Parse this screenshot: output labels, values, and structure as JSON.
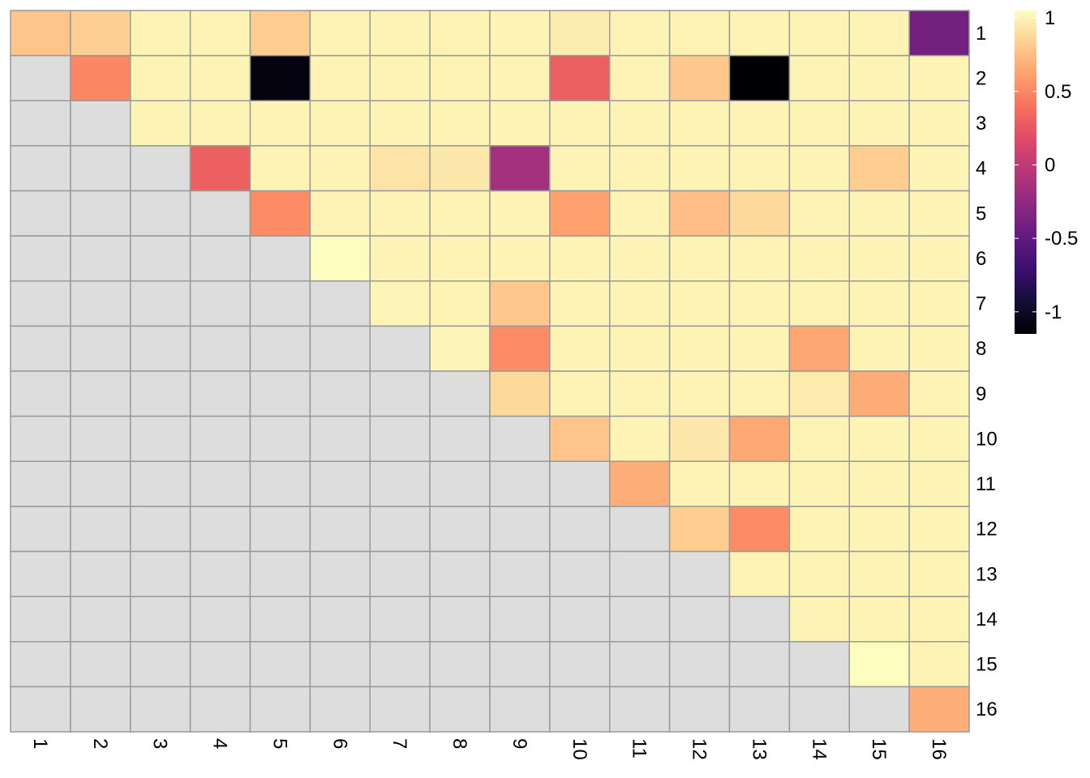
{
  "chart_data": {
    "type": "heatmap",
    "colormap": "magma",
    "na_color": "#DDDDDD",
    "border_color": "#999999",
    "color_range": [
      -1.15,
      1.05
    ],
    "legend": {
      "position": "right",
      "ticks": [
        "1",
        "0.5",
        "0",
        "-0.5",
        "-1"
      ],
      "tick_values": [
        1,
        0.5,
        0,
        -0.5,
        -1
      ]
    },
    "row_labels": [
      "1",
      "2",
      "3",
      "4",
      "5",
      "6",
      "7",
      "8",
      "9",
      "10",
      "11",
      "12",
      "13",
      "14",
      "15",
      "16"
    ],
    "col_labels": [
      "1",
      "2",
      "3",
      "4",
      "5",
      "6",
      "7",
      "8",
      "9",
      "10",
      "11",
      "12",
      "13",
      "14",
      "15",
      "16"
    ],
    "values": [
      [
        0.78,
        0.83,
        1.0,
        1.0,
        0.82,
        1.0,
        1.0,
        1.0,
        1.0,
        0.97,
        1.0,
        1.0,
        1.0,
        1.0,
        1.0,
        -0.4
      ],
      [
        null,
        0.5,
        1.0,
        1.0,
        -1.1,
        1.0,
        1.0,
        1.0,
        1.0,
        0.3,
        1.0,
        0.8,
        -1.15,
        1.0,
        1.0,
        1.0
      ],
      [
        null,
        null,
        1.0,
        1.0,
        1.0,
        1.0,
        1.0,
        1.0,
        1.0,
        1.0,
        1.0,
        1.0,
        1.0,
        1.0,
        1.0,
        1.0
      ],
      [
        null,
        null,
        null,
        0.3,
        1.0,
        1.0,
        0.93,
        0.95,
        -0.15,
        1.0,
        1.0,
        1.0,
        1.0,
        1.0,
        0.82,
        1.0
      ],
      [
        null,
        null,
        null,
        null,
        0.52,
        1.0,
        1.0,
        1.0,
        1.0,
        0.62,
        1.0,
        0.75,
        0.88,
        1.0,
        1.0,
        1.0
      ],
      [
        null,
        null,
        null,
        null,
        null,
        1.05,
        1.0,
        1.0,
        1.0,
        1.0,
        1.0,
        1.0,
        1.0,
        1.0,
        1.0,
        1.0
      ],
      [
        null,
        null,
        null,
        null,
        null,
        null,
        1.01,
        1.0,
        0.8,
        1.0,
        1.0,
        1.0,
        1.0,
        1.0,
        1.0,
        1.0
      ],
      [
        null,
        null,
        null,
        null,
        null,
        null,
        null,
        1.01,
        0.52,
        1.0,
        1.0,
        1.0,
        1.0,
        0.64,
        1.0,
        1.0
      ],
      [
        null,
        null,
        null,
        null,
        null,
        null,
        null,
        null,
        0.88,
        1.0,
        1.0,
        1.0,
        1.0,
        0.96,
        0.67,
        1.0
      ],
      [
        null,
        null,
        null,
        null,
        null,
        null,
        null,
        null,
        null,
        0.78,
        1.0,
        0.95,
        0.65,
        1.0,
        1.0,
        1.0
      ],
      [
        null,
        null,
        null,
        null,
        null,
        null,
        null,
        null,
        null,
        null,
        0.68,
        1.0,
        1.0,
        1.0,
        1.0,
        1.0
      ],
      [
        null,
        null,
        null,
        null,
        null,
        null,
        null,
        null,
        null,
        null,
        null,
        0.82,
        0.52,
        1.0,
        1.0,
        1.0
      ],
      [
        null,
        null,
        null,
        null,
        null,
        null,
        null,
        null,
        null,
        null,
        null,
        null,
        1.0,
        1.0,
        1.0,
        1.0
      ],
      [
        null,
        null,
        null,
        null,
        null,
        null,
        null,
        null,
        null,
        null,
        null,
        null,
        null,
        1.0,
        1.0,
        1.0
      ],
      [
        null,
        null,
        null,
        null,
        null,
        null,
        null,
        null,
        null,
        null,
        null,
        null,
        null,
        null,
        1.05,
        1.0
      ],
      [
        null,
        null,
        null,
        null,
        null,
        null,
        null,
        null,
        null,
        null,
        null,
        null,
        null,
        null,
        null,
        0.68
      ]
    ]
  }
}
